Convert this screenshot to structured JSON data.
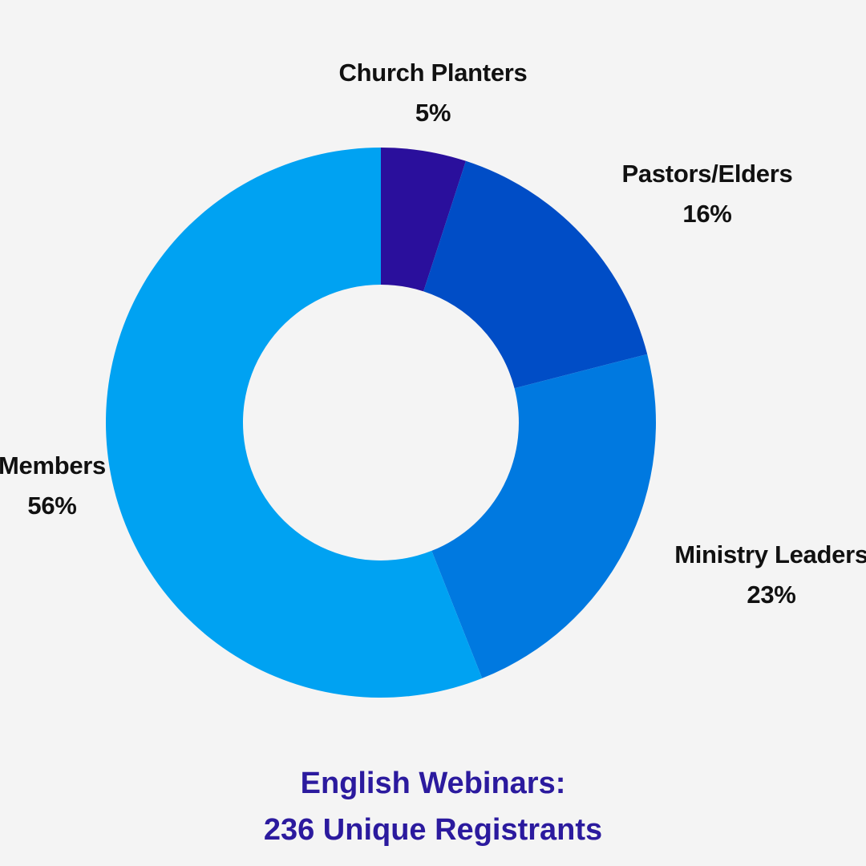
{
  "chart_data": {
    "type": "pie",
    "donut": true,
    "slices": [
      {
        "label": "Church Planters",
        "value": 5,
        "value_label": "5%",
        "color": "#2a0f9c"
      },
      {
        "label": "Pastors/Elders",
        "value": 16,
        "value_label": "16%",
        "color": "#004dc6"
      },
      {
        "label": "Ministry Leaders",
        "value": 23,
        "value_label": "23%",
        "color": "#0079e0"
      },
      {
        "label": "Members",
        "value": 56,
        "value_label": "56%",
        "color": "#00a2f2"
      }
    ],
    "title_line1": "English Webinars:",
    "title_line2": "236 Unique Registrants"
  }
}
